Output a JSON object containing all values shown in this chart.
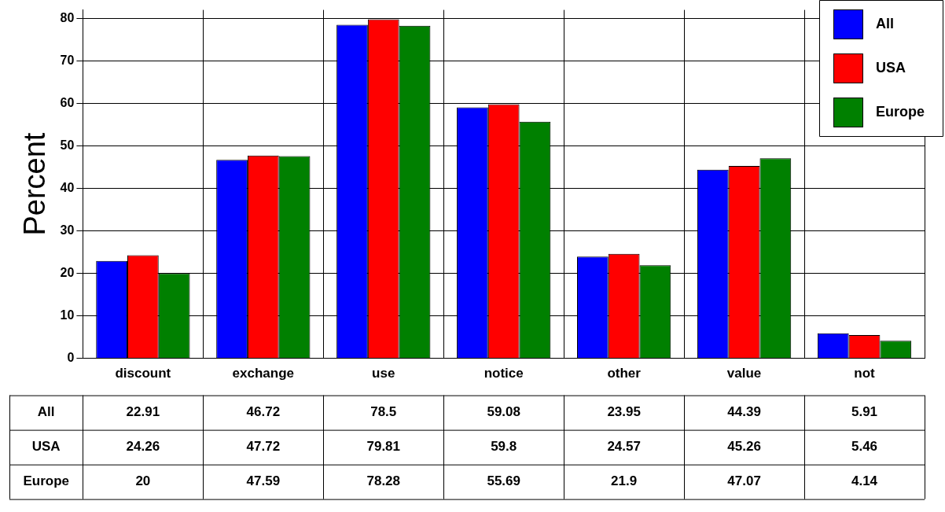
{
  "chart_data": {
    "type": "bar",
    "ylabel": "Percent",
    "categories": [
      "discount",
      "exchange",
      "use",
      "notice",
      "other",
      "value",
      "not"
    ],
    "series": [
      {
        "name": "All",
        "color": "#0000ff",
        "values": [
          22.91,
          46.72,
          78.5,
          59.08,
          23.95,
          44.39,
          5.91
        ]
      },
      {
        "name": "USA",
        "color": "#ff0000",
        "values": [
          24.26,
          47.72,
          79.81,
          59.8,
          24.57,
          45.26,
          5.46
        ]
      },
      {
        "name": "Europe",
        "color": "#008000",
        "values": [
          20,
          47.59,
          78.28,
          55.69,
          21.9,
          47.07,
          4.14
        ]
      }
    ],
    "ylim": [
      0,
      82
    ],
    "yticks": [
      0,
      10,
      20,
      30,
      40,
      50,
      60,
      70,
      80
    ],
    "grid": true,
    "legend": "top right",
    "data_labels": true
  }
}
